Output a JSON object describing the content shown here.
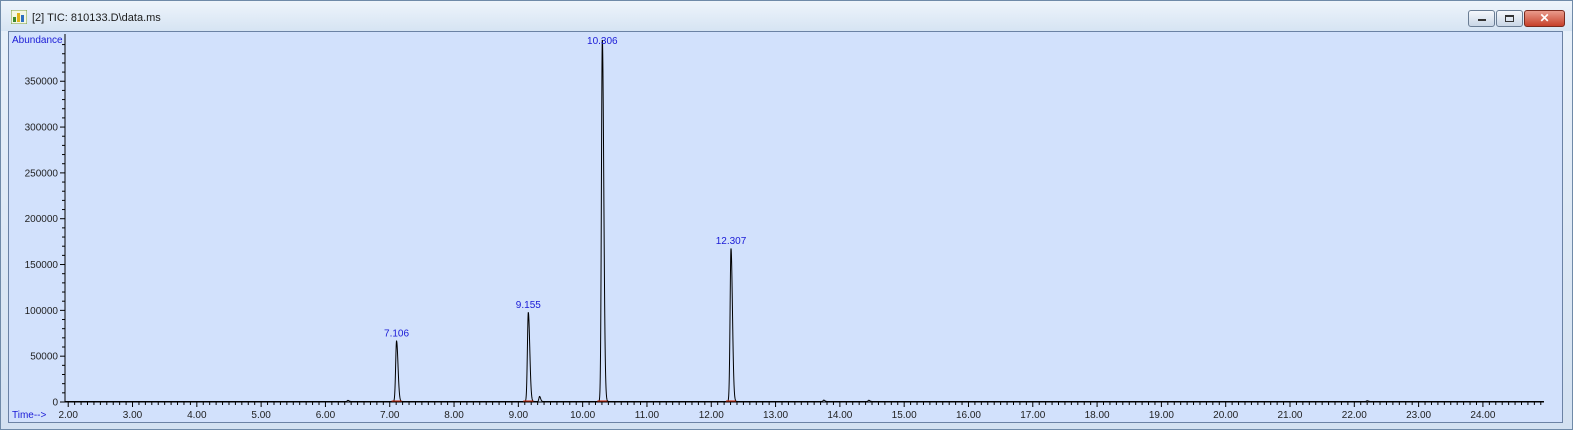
{
  "window": {
    "title": "[2] TIC: 810133.D\\data.ms",
    "icon": "chromatogram-app-icon",
    "controls": {
      "minimize": "minimize-icon",
      "maximize": "maximize-icon",
      "close": "close-icon"
    },
    "colors": {
      "plot_background": "#d2e1fc",
      "trace": "#000000",
      "peak_label": "#1a1ad6",
      "baseline_marker": "#cc2200"
    }
  },
  "chart_data": {
    "type": "line",
    "title": "",
    "xlabel": "Time-->",
    "ylabel": "Abundance",
    "xlim": [
      1.95,
      24.95
    ],
    "ylim": [
      0,
      395000
    ],
    "x_ticks": [
      2.0,
      3.0,
      4.0,
      5.0,
      6.0,
      7.0,
      8.0,
      9.0,
      10.0,
      11.0,
      12.0,
      13.0,
      14.0,
      15.0,
      16.0,
      17.0,
      18.0,
      19.0,
      20.0,
      21.0,
      22.0,
      23.0,
      24.0
    ],
    "x_tick_labels": [
      "2.00",
      "3.00",
      "4.00",
      "5.00",
      "6.00",
      "7.00",
      "8.00",
      "9.00",
      "10.00",
      "11.00",
      "12.00",
      "13.00",
      "14.00",
      "15.00",
      "16.00",
      "17.00",
      "18.00",
      "19.00",
      "20.00",
      "21.00",
      "22.00",
      "23.00",
      "24.00"
    ],
    "y_ticks": [
      0,
      50000,
      100000,
      150000,
      200000,
      250000,
      300000,
      350000
    ],
    "y_tick_labels": [
      "0",
      "50000",
      "100000",
      "150000",
      "200000",
      "250000",
      "300000",
      "350000"
    ],
    "grid": false,
    "series": [
      {
        "peaks": [
          {
            "rt": 7.106,
            "label": "7.106",
            "height": 66000
          },
          {
            "rt": 9.155,
            "label": "9.155",
            "height": 97000
          },
          {
            "rt": 10.306,
            "label": "10.306",
            "height": 395000
          },
          {
            "rt": 12.307,
            "label": "12.307",
            "height": 167000
          }
        ],
        "minor_peaks": [
          {
            "rt": 9.33,
            "height": 5500
          },
          {
            "rt": 6.35,
            "height": 1200
          },
          {
            "rt": 13.75,
            "height": 1500
          },
          {
            "rt": 14.45,
            "height": 1300
          },
          {
            "rt": 22.2,
            "height": 800
          }
        ]
      }
    ]
  }
}
